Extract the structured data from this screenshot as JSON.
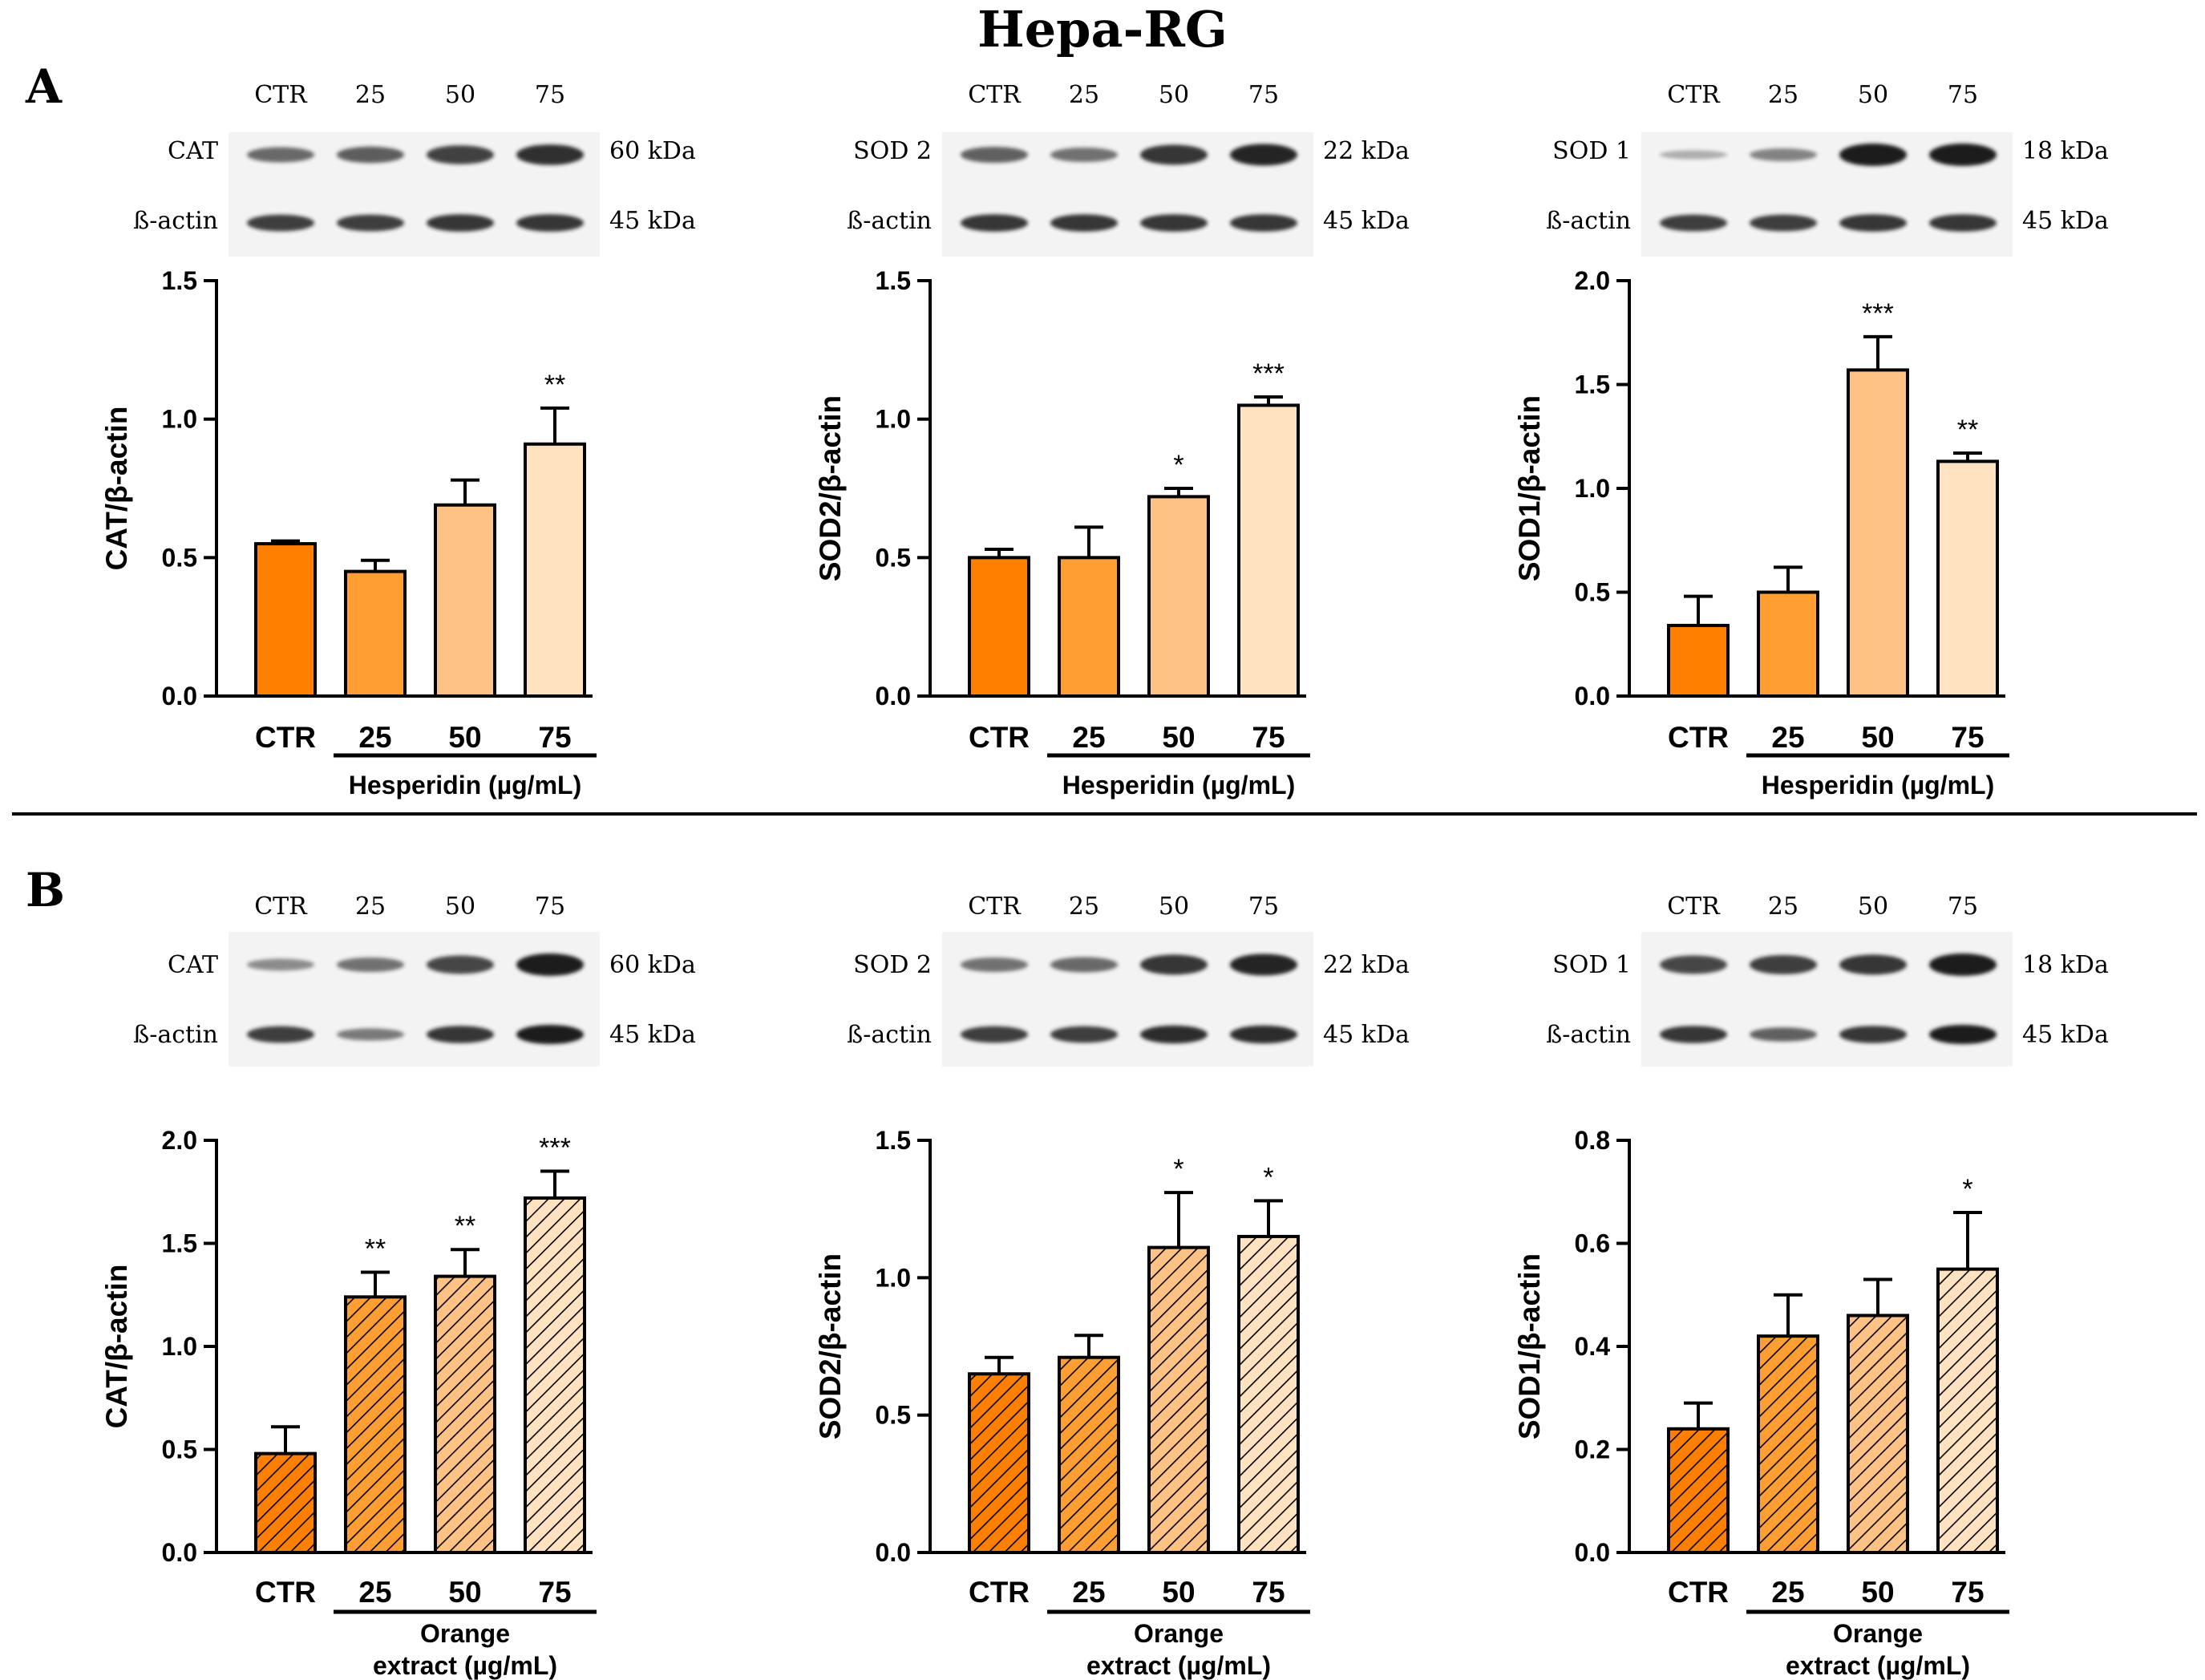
{
  "figure": {
    "title": "Hepa-RG",
    "sections": [
      {
        "letter": "A"
      },
      {
        "letter": "B"
      }
    ]
  },
  "colors": {
    "ctr": "#ff8000",
    "c25": "#ff9e33",
    "c50": "#ffc285",
    "c75": "#ffe2c0",
    "ink": "#000000",
    "blot_bg": "#f3f3f3",
    "band": "#1a1a1a"
  },
  "blots": [
    {
      "lanes": [
        "CTR",
        "25",
        "50",
        "75"
      ],
      "protein": "CAT",
      "protein_kda": "60 kDa",
      "loading": "ß-actin",
      "loading_kda": "45 kDa",
      "protein_band_strength": [
        0.55,
        0.62,
        0.78,
        0.88
      ],
      "loading_band_strength": [
        0.8,
        0.8,
        0.85,
        0.85
      ]
    },
    {
      "lanes": [
        "CTR",
        "25",
        "50",
        "75"
      ],
      "protein": "SOD 2",
      "protein_kda": "22 kDa",
      "loading": "ß-actin",
      "loading_kda": "45 kDa",
      "protein_band_strength": [
        0.6,
        0.5,
        0.85,
        0.95
      ],
      "loading_band_strength": [
        0.85,
        0.85,
        0.85,
        0.85
      ]
    },
    {
      "lanes": [
        "CTR",
        "25",
        "50",
        "75"
      ],
      "protein": "SOD 1",
      "protein_kda": "18 kDa",
      "loading": "ß-actin",
      "loading_kda": "45 kDa",
      "protein_band_strength": [
        0.15,
        0.4,
        1.0,
        1.0
      ],
      "loading_band_strength": [
        0.8,
        0.8,
        0.85,
        0.85
      ]
    },
    {
      "lanes": [
        "CTR",
        "25",
        "50",
        "75"
      ],
      "protein": "CAT",
      "protein_kda": "60 kDa",
      "loading": "ß-actin",
      "loading_kda": "45 kDa",
      "protein_band_strength": [
        0.35,
        0.5,
        0.75,
        1.0
      ],
      "loading_band_strength": [
        0.8,
        0.45,
        0.85,
        1.0
      ]
    },
    {
      "lanes": [
        "CTR",
        "25",
        "50",
        "75"
      ],
      "protein": "SOD 2",
      "protein_kda": "22 kDa",
      "loading": "ß-actin",
      "loading_kda": "45 kDa",
      "protein_band_strength": [
        0.5,
        0.55,
        0.85,
        0.95
      ],
      "loading_band_strength": [
        0.8,
        0.8,
        0.9,
        0.9
      ]
    },
    {
      "lanes": [
        "CTR",
        "25",
        "50",
        "75"
      ],
      "protein": "SOD 1",
      "protein_kda": "18 kDa",
      "loading": "ß-actin",
      "loading_kda": "45 kDa",
      "protein_band_strength": [
        0.75,
        0.8,
        0.85,
        1.0
      ],
      "loading_band_strength": [
        0.85,
        0.6,
        0.85,
        1.0
      ]
    }
  ],
  "chart_data": [
    {
      "type": "bar",
      "section": "A",
      "categories": [
        "CTR",
        "25",
        "50",
        "75"
      ],
      "values": [
        0.55,
        0.45,
        0.69,
        0.91
      ],
      "errors": [
        0.01,
        0.04,
        0.09,
        0.13
      ],
      "significance": [
        "",
        "",
        "",
        "**"
      ],
      "ylabel": "CAT/β-actin",
      "ylim": [
        0,
        1.5
      ],
      "yticks": [
        0.0,
        0.5,
        1.0,
        1.5
      ],
      "ytick_labels": [
        "0.0",
        "0.5",
        "1.0",
        "1.5"
      ],
      "xlabel_lines": [
        "Hesperidin (µg/mL)"
      ],
      "hatched": false
    },
    {
      "type": "bar",
      "section": "A",
      "categories": [
        "CTR",
        "25",
        "50",
        "75"
      ],
      "values": [
        0.5,
        0.5,
        0.72,
        1.05
      ],
      "errors": [
        0.03,
        0.11,
        0.03,
        0.03
      ],
      "significance": [
        "",
        "",
        "*",
        "***"
      ],
      "ylabel": "SOD2/β-actin",
      "ylim": [
        0,
        1.5
      ],
      "yticks": [
        0.0,
        0.5,
        1.0,
        1.5
      ],
      "ytick_labels": [
        "0.0",
        "0.5",
        "1.0",
        "1.5"
      ],
      "xlabel_lines": [
        "Hesperidin (µg/mL)"
      ],
      "hatched": false
    },
    {
      "type": "bar",
      "section": "A",
      "categories": [
        "CTR",
        "25",
        "50",
        "75"
      ],
      "values": [
        0.34,
        0.5,
        1.57,
        1.13
      ],
      "errors": [
        0.14,
        0.12,
        0.16,
        0.04
      ],
      "significance": [
        "",
        "",
        "***",
        "**"
      ],
      "ylabel": "SOD1/β-actin",
      "ylim": [
        0,
        2.0
      ],
      "yticks": [
        0.0,
        0.5,
        1.0,
        1.5,
        2.0
      ],
      "ytick_labels": [
        "0.0",
        "0.5",
        "1.0",
        "1.5",
        "2.0"
      ],
      "xlabel_lines": [
        "Hesperidin (µg/mL)"
      ],
      "hatched": false
    },
    {
      "type": "bar",
      "section": "B",
      "categories": [
        "CTR",
        "25",
        "50",
        "75"
      ],
      "values": [
        0.48,
        1.24,
        1.34,
        1.72
      ],
      "errors": [
        0.13,
        0.12,
        0.13,
        0.13
      ],
      "significance": [
        "",
        "**",
        "**",
        "***"
      ],
      "ylabel": "CAT/β-actin",
      "ylim": [
        0,
        2.0
      ],
      "yticks": [
        0.0,
        0.5,
        1.0,
        1.5,
        2.0
      ],
      "ytick_labels": [
        "0.0",
        "0.5",
        "1.0",
        "1.5",
        "2.0"
      ],
      "xlabel_lines": [
        "Orange",
        "extract (µg/mL)"
      ],
      "hatched": true
    },
    {
      "type": "bar",
      "section": "B",
      "categories": [
        "CTR",
        "25",
        "50",
        "75"
      ],
      "values": [
        0.65,
        0.71,
        1.11,
        1.15
      ],
      "errors": [
        0.06,
        0.08,
        0.2,
        0.13
      ],
      "significance": [
        "",
        "",
        "*",
        "*"
      ],
      "ylabel": "SOD2/β-actin",
      "ylim": [
        0,
        1.5
      ],
      "yticks": [
        0.0,
        0.5,
        1.0,
        1.5
      ],
      "ytick_labels": [
        "0.0",
        "0.5",
        "1.0",
        "1.5"
      ],
      "xlabel_lines": [
        "Orange",
        "extract (µg/mL)"
      ],
      "hatched": true
    },
    {
      "type": "bar",
      "section": "B",
      "categories": [
        "CTR",
        "25",
        "50",
        "75"
      ],
      "values": [
        0.24,
        0.42,
        0.46,
        0.55
      ],
      "errors": [
        0.05,
        0.08,
        0.07,
        0.11
      ],
      "significance": [
        "",
        "",
        "",
        "*"
      ],
      "ylabel": "SOD1/β-actin",
      "ylim": [
        0,
        0.8
      ],
      "yticks": [
        0.0,
        0.2,
        0.4,
        0.6,
        0.8
      ],
      "ytick_labels": [
        "0.0",
        "0.2",
        "0.4",
        "0.6",
        "0.8"
      ],
      "xlabel_lines": [
        "Orange",
        "extract (µg/mL)"
      ],
      "hatched": true
    }
  ]
}
